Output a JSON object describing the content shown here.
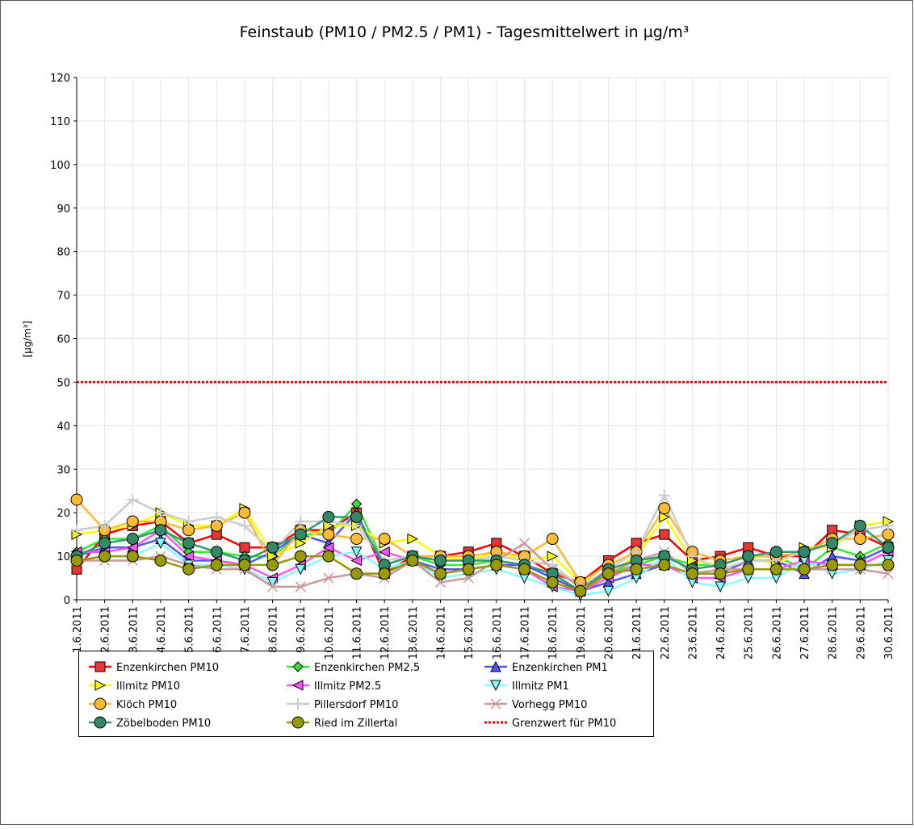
{
  "chart_data": {
    "type": "line",
    "title": "Feinstaub (PM10 / PM2.5 / PM1) -  Tagesmittelwert in µg/m³",
    "y_label": "[µg/m³]",
    "categories": [
      "1.6.2011",
      "2.6.2011",
      "3.6.2011",
      "4.6.2011",
      "5.6.2011",
      "6.6.2011",
      "7.6.2011",
      "8.6.2011",
      "9.6.2011",
      "10.6.2011",
      "11.6.2011",
      "12.6.2011",
      "13.6.2011",
      "14.6.2011",
      "15.6.2011",
      "16.6.2011",
      "17.6.2011",
      "18.6.2011",
      "19.6.2011",
      "20.6.2011",
      "21.6.2011",
      "22.6.2011",
      "23.6.2011",
      "24.6.2011",
      "25.6.2011",
      "26.6.2011",
      "27.6.2011",
      "28.6.2011",
      "29.6.2011",
      "30.6.2011"
    ],
    "ylim": [
      0,
      120
    ],
    "yticks": [
      0,
      10,
      20,
      30,
      40,
      50,
      60,
      70,
      80,
      90,
      100,
      110,
      120
    ],
    "grid": true,
    "series": [
      {
        "name": "Enzenkirchen PM10",
        "color": "#ff0000",
        "fill": "#ee3333",
        "marker": "square",
        "values": [
          7,
          15,
          17,
          18,
          13,
          15,
          12,
          12,
          16,
          16,
          20,
          6,
          10,
          10,
          11,
          13,
          10,
          6,
          4,
          9,
          13,
          15,
          9,
          10,
          12,
          10,
          10,
          16,
          15,
          12
        ]
      },
      {
        "name": "Enzenkirchen PM2.5",
        "color": "#33ee33",
        "fill": "#33dd33",
        "marker": "diamond",
        "values": [
          11,
          14,
          14,
          17,
          11,
          11,
          10,
          10,
          15,
          15,
          22,
          8,
          10,
          8,
          8,
          9,
          8,
          6,
          2,
          6,
          8,
          10,
          8,
          8,
          10,
          10,
          7,
          12,
          10,
          13
        ]
      },
      {
        "name": "Enzenkirchen PM1",
        "color": "#5555ff",
        "fill": "#5555ff",
        "marker": "triangle-up",
        "values": [
          10,
          12,
          12,
          14,
          9,
          9,
          8,
          11,
          15,
          13,
          20,
          7,
          9,
          7,
          7,
          8,
          8,
          5,
          2,
          4,
          6,
          8,
          6,
          6,
          9,
          9,
          6,
          10,
          9,
          12
        ]
      },
      {
        "name": "Illmitz PM10",
        "color": "#ffff00",
        "fill": "#ffff00",
        "marker": "triangle-right",
        "values": [
          15,
          16,
          17,
          20,
          17,
          17,
          21,
          10,
          13,
          17,
          17,
          13,
          14,
          10,
          9,
          11,
          9,
          10,
          4,
          6,
          10,
          19,
          9,
          8,
          10,
          8,
          12,
          12,
          17,
          18
        ]
      },
      {
        "name": "Illmitz PM2.5",
        "color": "#ff55ff",
        "fill": "#ff55ff",
        "marker": "triangle-left",
        "values": [
          11,
          11,
          12,
          16,
          10,
          9,
          8,
          5,
          8,
          12,
          9,
          11,
          9,
          6,
          7,
          8,
          7,
          3,
          2,
          5,
          8,
          8,
          5,
          5,
          7,
          7,
          9,
          8,
          8,
          11
        ]
      },
      {
        "name": "Illmitz PM1",
        "color": "#88ffff",
        "fill": "#88ffff",
        "marker": "triangle-down",
        "values": [
          9,
          10,
          10,
          13,
          8,
          8,
          7,
          4,
          7,
          10,
          11,
          7,
          9,
          5,
          6,
          7,
          5,
          3,
          1,
          2,
          5,
          10,
          4,
          3,
          5,
          5,
          9,
          6,
          7,
          9
        ]
      },
      {
        "name": "Klöch PM10",
        "color": "#ffbb33",
        "fill": "#ffbb33",
        "marker": "circle",
        "values": [
          23,
          16,
          18,
          18,
          16,
          17,
          20,
          8,
          16,
          15,
          14,
          14,
          10,
          10,
          10,
          11,
          10,
          14,
          4,
          8,
          11,
          21,
          11,
          9,
          10,
          10,
          11,
          14,
          14,
          15
        ]
      },
      {
        "name": "Pillersdorf PM10",
        "color": "#cccccc",
        "fill": "#cccccc",
        "marker": "plus",
        "values": [
          16,
          17,
          23,
          20,
          18,
          19,
          17,
          11,
          18,
          18,
          17,
          9,
          10,
          9,
          9,
          10,
          9,
          8,
          3,
          7,
          11,
          24,
          10,
          7,
          9,
          9,
          11,
          13,
          16,
          17
        ]
      },
      {
        "name": "Vorhegg PM10",
        "color": "#cc9999",
        "fill": "#cc9999",
        "marker": "cross",
        "values": [
          9,
          9,
          9,
          10,
          8,
          7,
          7,
          3,
          3,
          5,
          6,
          5,
          9,
          4,
          5,
          9,
          13,
          7,
          3,
          6,
          9,
          11,
          6,
          7,
          7,
          7,
          7,
          7,
          7,
          6
        ]
      },
      {
        "name": "Zöbelboden PM10",
        "color": "#339977",
        "fill": "#338866",
        "marker": "circle",
        "values": [
          10,
          13,
          14,
          16,
          13,
          11,
          9,
          12,
          15,
          19,
          19,
          8,
          10,
          9,
          9,
          9,
          8,
          6,
          2,
          7,
          9,
          10,
          7,
          8,
          10,
          11,
          11,
          13,
          17,
          12
        ]
      },
      {
        "name": "Ried im Zillertal",
        "color": "#999900",
        "fill": "#999900",
        "marker": "circle",
        "values": [
          9,
          10,
          10,
          9,
          7,
          8,
          8,
          8,
          10,
          10,
          6,
          6,
          9,
          6,
          7,
          8,
          7,
          4,
          2,
          6,
          7,
          8,
          6,
          6,
          7,
          7,
          7,
          8,
          8,
          8
        ]
      }
    ],
    "threshold": {
      "name": "Grenzwert für PM10",
      "value": 50,
      "color": "#ff0000"
    }
  }
}
